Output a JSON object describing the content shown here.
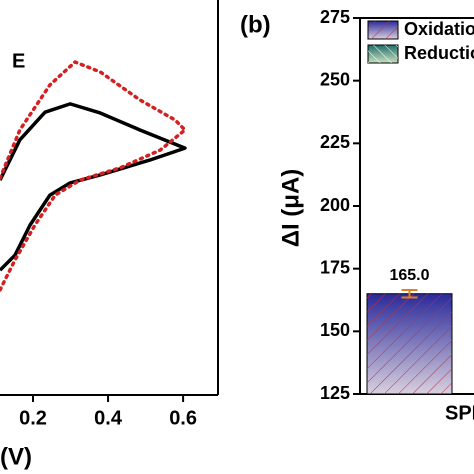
{
  "chart_data": [
    {
      "type": "line",
      "annotation": "E",
      "xlabel": "(V)",
      "xlim": [
        0.112,
        0.693
      ],
      "xticks": [
        0.2,
        0.4,
        0.6
      ],
      "ylim": [
        0,
        100
      ],
      "series": [
        {
          "color": "#000000",
          "style": "solid",
          "x": [
            0.112,
            0.165,
            0.232,
            0.299,
            0.379,
            0.485,
            0.605,
            0.512,
            0.379,
            0.299,
            0.245,
            0.192,
            0.152,
            0.112
          ],
          "values": [
            54.4,
            64.6,
            71.6,
            73.7,
            71.4,
            67.1,
            62.5,
            59.5,
            55.7,
            53.7,
            50.6,
            43.0,
            35.4,
            31.6
          ]
        },
        {
          "color": "#d42020",
          "style": "dotted",
          "x": [
            0.112,
            0.165,
            0.245,
            0.312,
            0.379,
            0.485,
            0.579,
            0.605,
            0.539,
            0.432,
            0.325,
            0.259,
            0.205,
            0.152,
            0.112
          ],
          "values": [
            54.9,
            67.1,
            78.5,
            84.3,
            81.8,
            74.7,
            69.6,
            67.1,
            62.0,
            57.5,
            54.4,
            50.6,
            43.0,
            34.2,
            26.6
          ]
        }
      ]
    },
    {
      "type": "bar",
      "panel_label": "(b)",
      "ylabel": "ΔI (μA)",
      "categories": [
        "SPE"
      ],
      "ylim": [
        125,
        275
      ],
      "yticks": [
        125,
        150,
        175,
        200,
        225,
        250,
        275
      ],
      "series": [
        {
          "name": "Oxidation",
          "color": "#2a2a9a",
          "values": [
            165
          ],
          "errors": [
            1.5
          ],
          "value_labels": [
            "165.0"
          ]
        },
        {
          "name": "Reduction",
          "color": "#1f6f6a",
          "values": [
            null
          ]
        }
      ]
    }
  ]
}
